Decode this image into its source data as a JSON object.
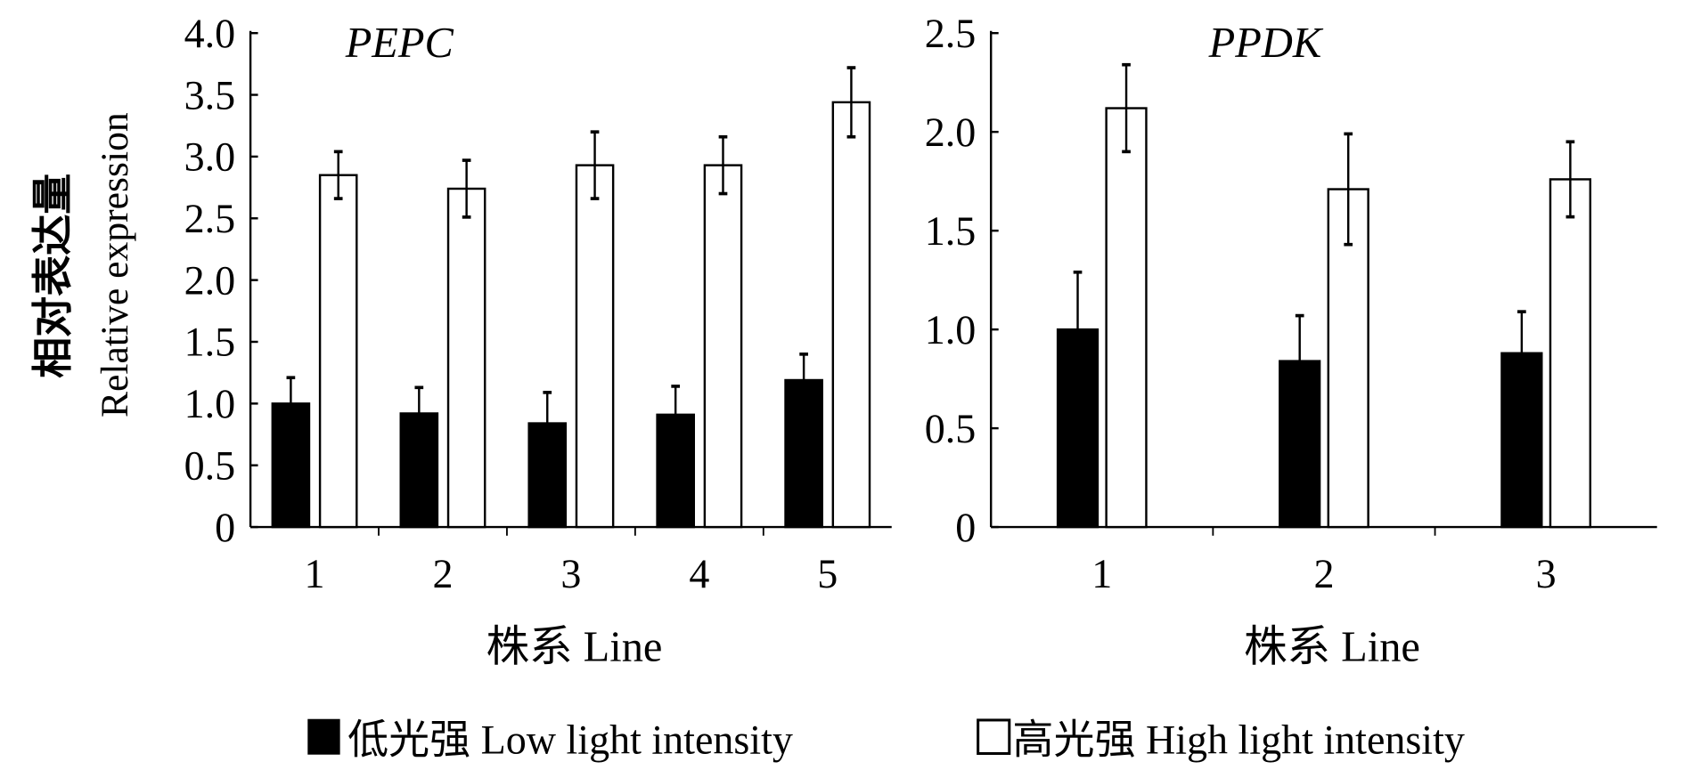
{
  "chart_data": [
    {
      "type": "bar",
      "title": "PEPC",
      "xlabel": "株系 Line",
      "ylabel_cn": "相对表达量",
      "ylabel": "Relative expression",
      "categories": [
        "1",
        "2",
        "3",
        "4",
        "5"
      ],
      "ylim": [
        0,
        4.0
      ],
      "yticks": [
        "0",
        "0.5",
        "1.0",
        "1.5",
        "2.0",
        "2.5",
        "3.0",
        "3.5",
        "4.0"
      ],
      "series": [
        {
          "name": "低光强 Low light intensity",
          "values": [
            1.0,
            0.92,
            0.84,
            0.91,
            1.19
          ],
          "errors": [
            0.21,
            0.21,
            0.25,
            0.23,
            0.21
          ]
        },
        {
          "name": "高光强 High light intensity",
          "values": [
            2.85,
            2.74,
            2.93,
            2.93,
            3.44
          ],
          "errors": [
            0.19,
            0.23,
            0.27,
            0.23,
            0.28
          ]
        }
      ],
      "grid": false
    },
    {
      "type": "bar",
      "title": "PPDK",
      "xlabel": "株系 Line",
      "categories": [
        "1",
        "2",
        "3"
      ],
      "ylim": [
        0,
        2.5
      ],
      "yticks": [
        "0",
        "0.5",
        "1.0",
        "1.5",
        "2.0",
        "2.5"
      ],
      "series": [
        {
          "name": "低光强 Low light intensity",
          "values": [
            1.0,
            0.84,
            0.88
          ],
          "errors": [
            0.29,
            0.23,
            0.21
          ]
        },
        {
          "name": "高光强 High light intensity",
          "values": [
            2.12,
            1.71,
            1.76
          ],
          "errors": [
            0.22,
            0.28,
            0.19
          ]
        }
      ],
      "grid": false
    }
  ],
  "legend": {
    "placement": "bottom",
    "items": [
      {
        "label": "低光强 Low light intensity",
        "color": "#000000"
      },
      {
        "label": "高光强 High light intensity",
        "color": "#ffffff"
      }
    ]
  }
}
